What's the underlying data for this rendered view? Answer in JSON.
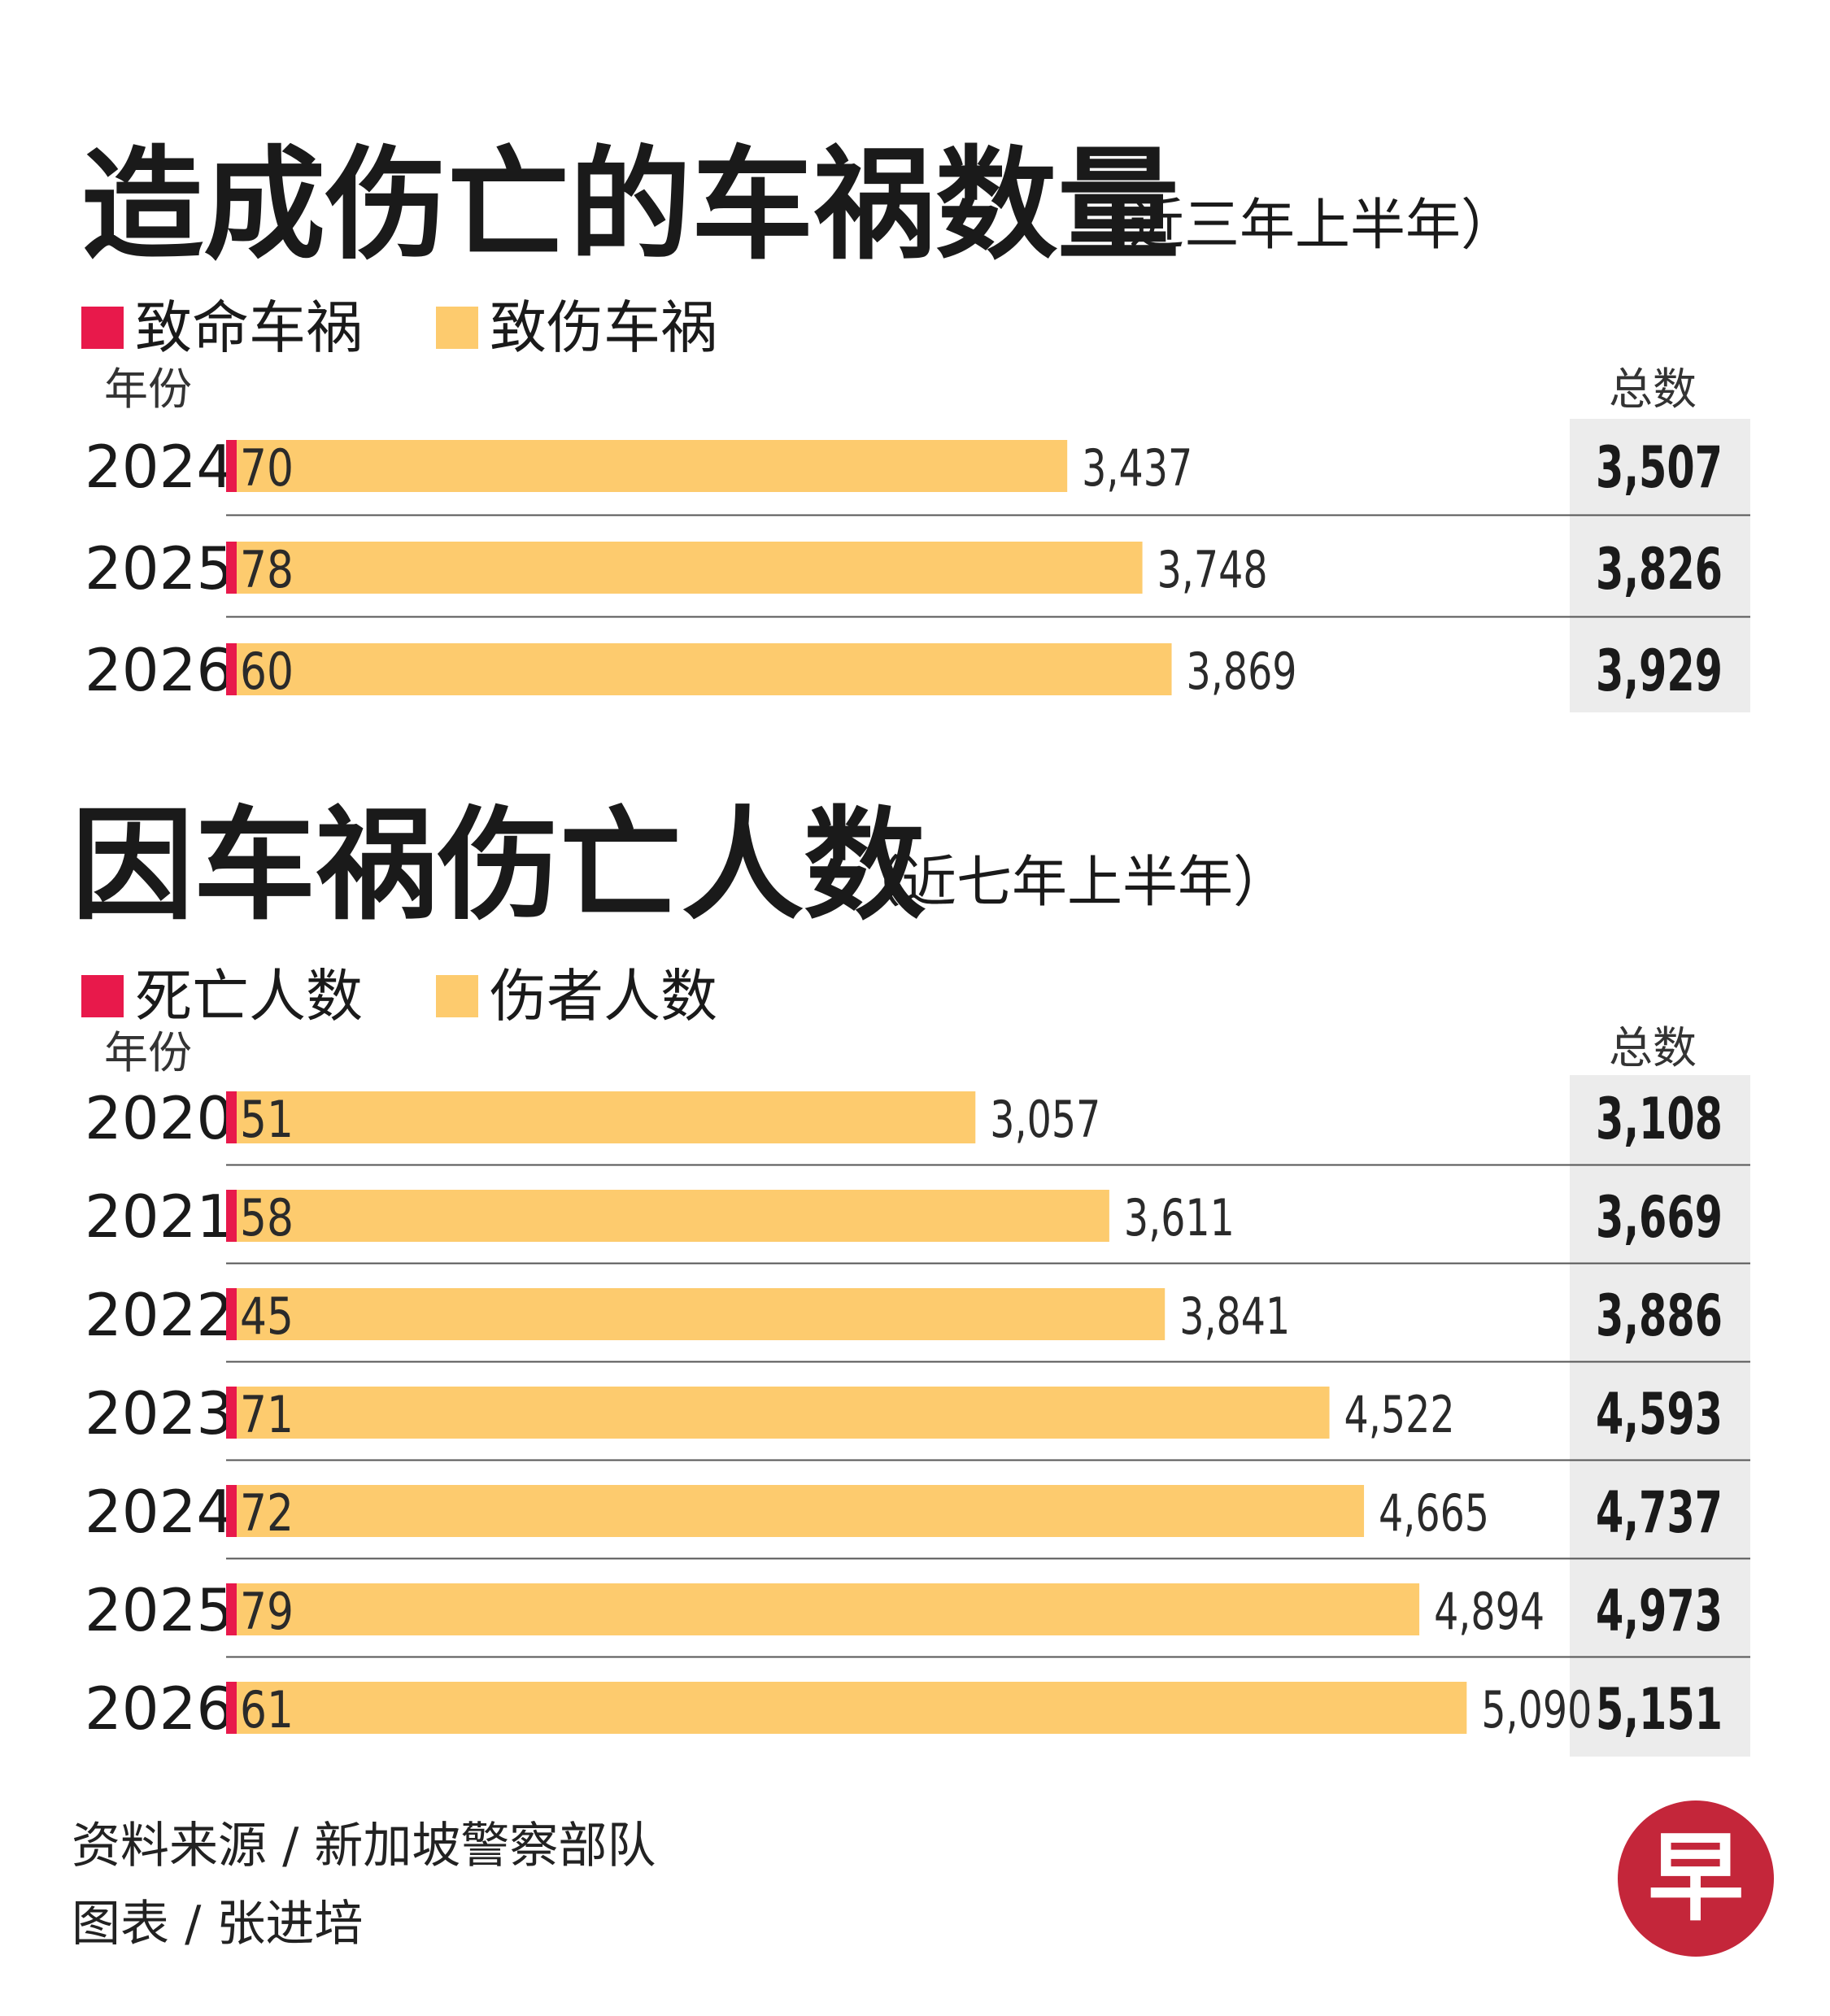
{
  "colors": {
    "fatal": "#e8194b",
    "injury": "#fdcb6e",
    "total_bg": "#ececec",
    "divider": "#555555",
    "logo": "#c4263a"
  },
  "chart_data": [
    {
      "type": "bar",
      "stacked": true,
      "orientation": "horizontal",
      "title": "造成伤亡的车祸数量",
      "subtitle": "（近三年上半年）",
      "year_header": "年份",
      "total_header": "总数",
      "categories": [
        "2024",
        "2025",
        "2026"
      ],
      "series": [
        {
          "name": "致命车祸",
          "values": [
            70,
            78,
            60
          ]
        },
        {
          "name": "致伤车祸",
          "values": [
            3437,
            3748,
            3869
          ]
        }
      ],
      "totals": [
        3507,
        3826,
        3929
      ],
      "xlim": [
        0,
        5200
      ]
    },
    {
      "type": "bar",
      "stacked": true,
      "orientation": "horizontal",
      "title": "因车祸伤亡人数",
      "subtitle": "（近七年上半年）",
      "year_header": "年份",
      "total_header": "总数",
      "categories": [
        "2020",
        "2021",
        "2022",
        "2023",
        "2024",
        "2025",
        "2026"
      ],
      "series": [
        {
          "name": "死亡人数",
          "values": [
            51,
            58,
            45,
            71,
            72,
            79,
            61
          ]
        },
        {
          "name": "伤者人数",
          "values": [
            3057,
            3611,
            3841,
            4522,
            4665,
            4894,
            5090
          ]
        }
      ],
      "totals": [
        3108,
        3669,
        3886,
        4593,
        4737,
        4973,
        5151
      ],
      "xlim": [
        0,
        5200
      ]
    }
  ],
  "footer": {
    "source": "资料来源 / 新加坡警察部队",
    "credit": "图表 / 张进培"
  },
  "logo": {
    "glyph": "早",
    "icon": "zaobao-logo-icon"
  }
}
